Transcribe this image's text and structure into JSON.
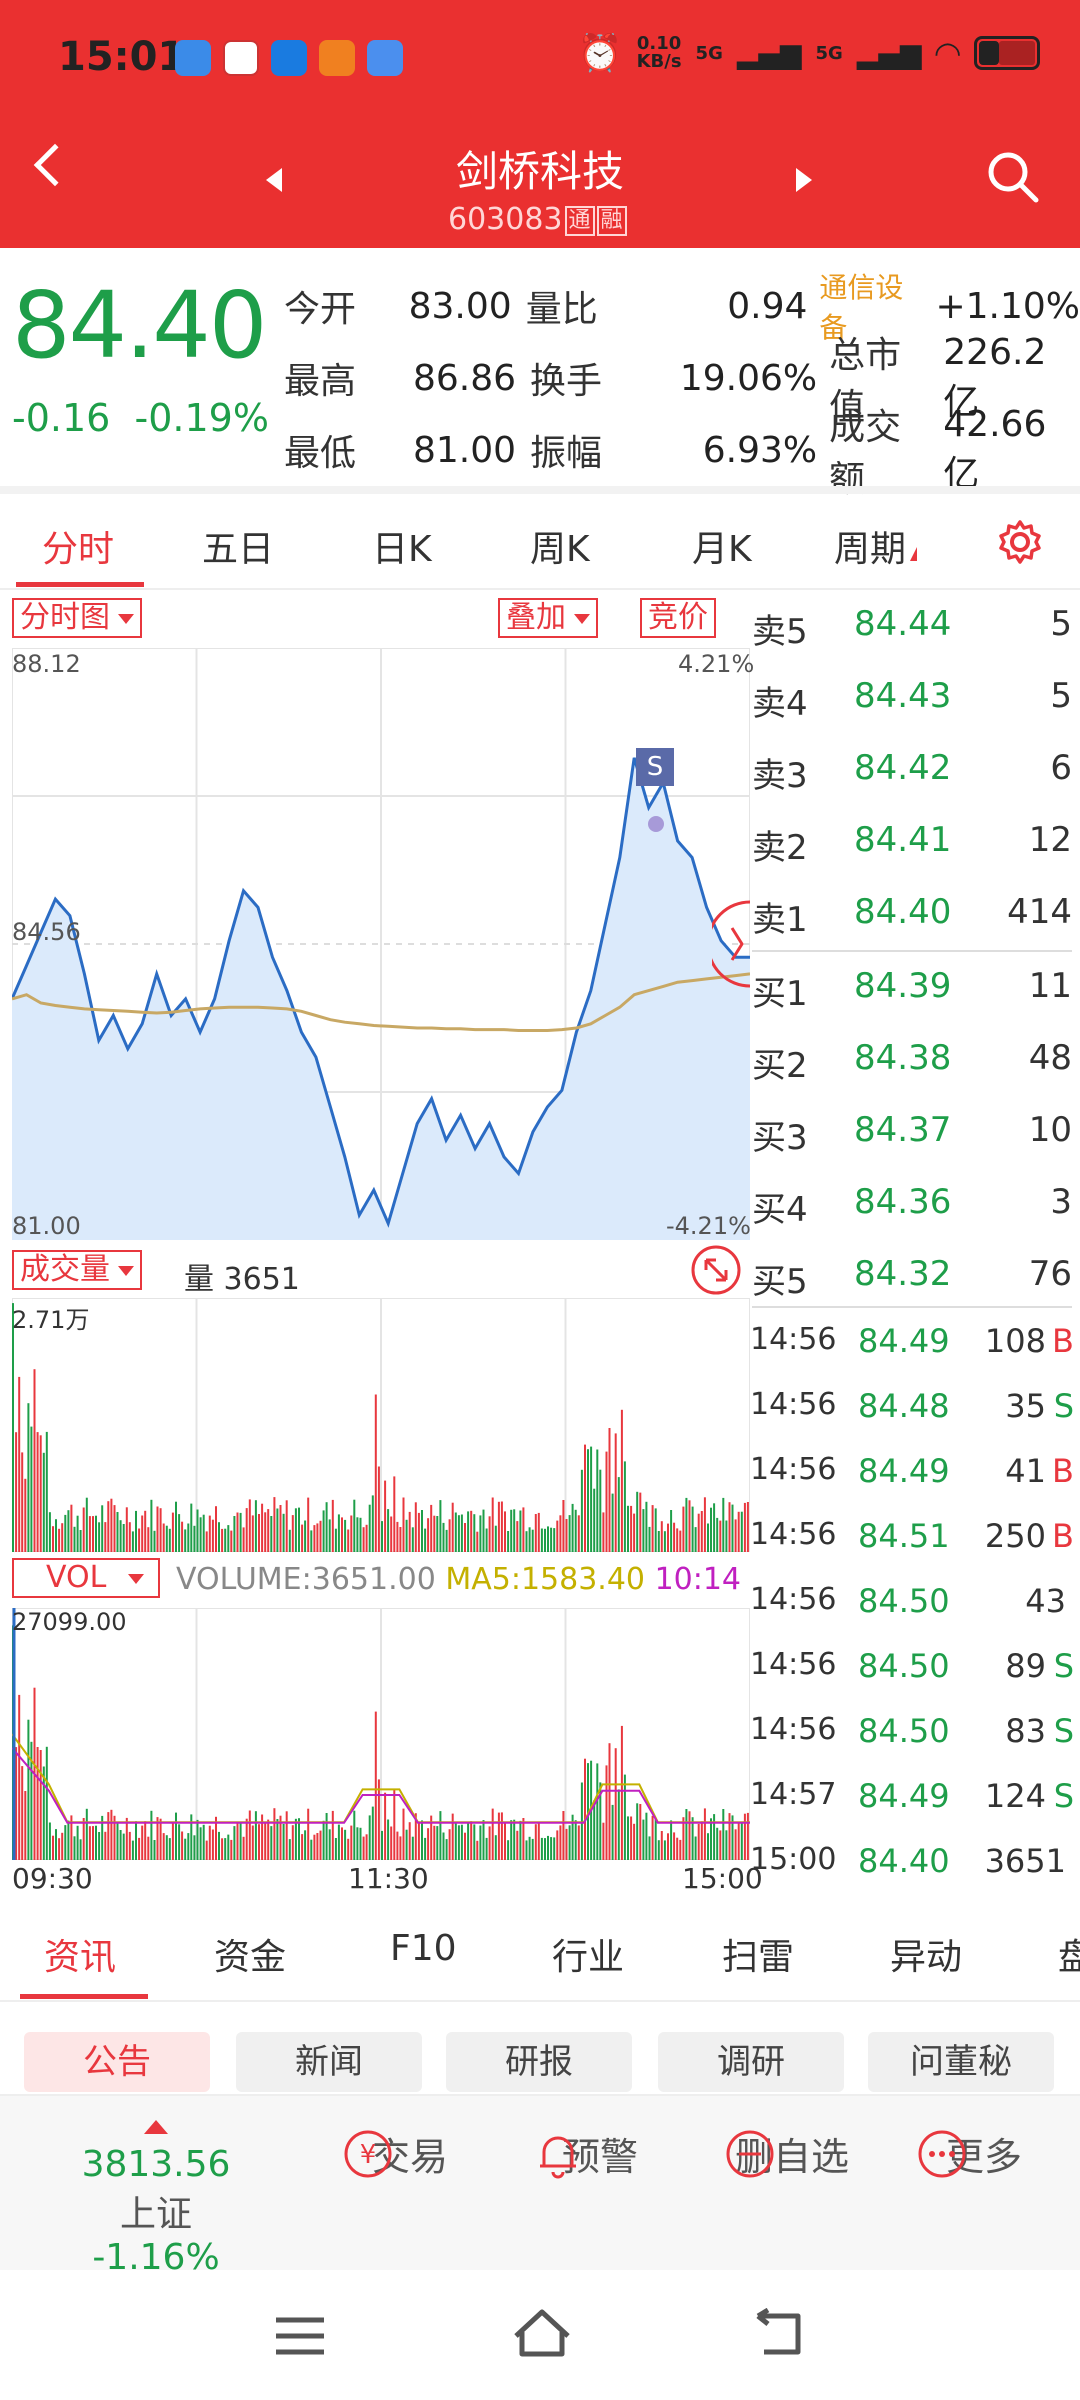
{
  "status_bar": {
    "time": "15:01",
    "net_speed_top": "0.10",
    "net_speed_unit": "KB/s",
    "sig1": "5G",
    "sig2": "5G"
  },
  "header": {
    "name": "剑桥科技",
    "code": "603083",
    "tag1": "通",
    "tag2": "融"
  },
  "quote": {
    "price": "84.40",
    "change": "-0.16",
    "change_pct": "-0.19%",
    "rows": [
      {
        "l1": "今开",
        "v1": "83.00",
        "l2": "量比",
        "v2": "0.94",
        "l3": "通信设备",
        "v3": "+1.10%"
      },
      {
        "l1": "最高",
        "v1": "86.86",
        "l2": "换手",
        "v2": "19.06%",
        "l3": "总市值",
        "v3": "226.2亿"
      },
      {
        "l1": "最低",
        "v1": "81.00",
        "l2": "振幅",
        "v2": "6.93%",
        "l3": "成交额",
        "v3": "42.66亿"
      }
    ]
  },
  "tabs": [
    "分时",
    "五日",
    "日K",
    "周K",
    "月K",
    "周期"
  ],
  "chart": {
    "type_btn": "分时图",
    "overlay_btn": "叠加",
    "auction_btn": "竞价",
    "y_max": "88.12",
    "y_mid": "84.56",
    "y_min": "81.00",
    "pct_max": "4.21%",
    "pct_min": "-4.21%",
    "marker": "S",
    "vol_btn": "成交量",
    "vol_label": "量 3651",
    "vol_max": "2.71万",
    "ind_btn": "VOL",
    "ind_volume_label": "VOLUME:",
    "ind_volume_value": "3651.00",
    "ind_ma5_label": "MA5:",
    "ind_ma5_value": "1583.40",
    "ind_ma10": "10:14",
    "ind_max": "27099.00",
    "x_start": "09:30",
    "x_mid": "11:30",
    "x_end": "15:00"
  },
  "order_book": [
    {
      "label": "卖5",
      "price": "84.44",
      "qty": "5"
    },
    {
      "label": "卖4",
      "price": "84.43",
      "qty": "5"
    },
    {
      "label": "卖3",
      "price": "84.42",
      "qty": "6"
    },
    {
      "label": "卖2",
      "price": "84.41",
      "qty": "12"
    },
    {
      "label": "卖1",
      "price": "84.40",
      "qty": "414"
    },
    {
      "label": "买1",
      "price": "84.39",
      "qty": "11"
    },
    {
      "label": "买2",
      "price": "84.38",
      "qty": "48"
    },
    {
      "label": "买3",
      "price": "84.37",
      "qty": "10"
    },
    {
      "label": "买4",
      "price": "84.36",
      "qty": "3"
    },
    {
      "label": "买5",
      "price": "84.32",
      "qty": "76"
    }
  ],
  "ticks": [
    {
      "time": "14:56",
      "price": "84.49",
      "qty": "108",
      "side": "B"
    },
    {
      "time": "14:56",
      "price": "84.48",
      "qty": "35",
      "side": "S"
    },
    {
      "time": "14:56",
      "price": "84.49",
      "qty": "41",
      "side": "B"
    },
    {
      "time": "14:56",
      "price": "84.51",
      "qty": "250",
      "side": "B"
    },
    {
      "time": "14:56",
      "price": "84.50",
      "qty": "43",
      "side": ""
    },
    {
      "time": "14:56",
      "price": "84.50",
      "qty": "89",
      "side": "S"
    },
    {
      "time": "14:56",
      "price": "84.50",
      "qty": "83",
      "side": "S"
    },
    {
      "time": "14:57",
      "price": "84.49",
      "qty": "124",
      "side": "S"
    },
    {
      "time": "15:00",
      "price": "84.40",
      "qty": "3651",
      "side": ""
    }
  ],
  "news_tabs": [
    "资讯",
    "资金",
    "F10",
    "行业",
    "扫雷",
    "异动",
    "盘"
  ],
  "chips": [
    "公告",
    "新闻",
    "研报",
    "调研",
    "问董秘"
  ],
  "toolbar": {
    "index_value": "3813.56",
    "index_name": "上证",
    "index_change": "-1.16%",
    "items": [
      "交易",
      "预警",
      "删自选",
      "更多"
    ]
  },
  "colors": {
    "brand": "#ea3030",
    "down": "#1e9e49",
    "up": "#e8373e",
    "price_line": "#2b6cc4",
    "avg_line": "#c8a864"
  },
  "chart_data": {
    "type": "line",
    "x_labels": [
      "09:30",
      "11:30",
      "15:00"
    ],
    "ylim": [
      81.0,
      88.12
    ],
    "prev_close": 84.56,
    "series": [
      {
        "values": [
          83.9,
          84.3,
          84.7,
          85.1,
          84.9,
          84.2,
          83.4,
          83.7,
          83.3,
          83.6,
          84.2,
          83.7,
          83.9,
          83.5,
          83.9,
          84.6,
          85.2,
          85.0,
          84.4,
          84.0,
          83.5,
          83.2,
          82.6,
          82.0,
          81.3,
          81.6,
          81.2,
          81.8,
          82.4,
          82.7,
          82.2,
          82.5,
          82.1,
          82.4,
          82.0,
          81.8,
          82.3,
          82.6,
          82.8,
          83.5,
          84.0,
          84.8,
          85.6,
          86.8,
          86.2,
          86.5,
          85.8,
          85.6,
          85.0,
          84.6,
          84.4,
          84.4
        ]
      },
      {
        "values": [
          83.9,
          83.95,
          83.85,
          83.82,
          83.8,
          83.78,
          83.77,
          83.76,
          83.75,
          83.74,
          83.73,
          83.74,
          83.76,
          83.78,
          83.79,
          83.8,
          83.8,
          83.8,
          83.79,
          83.78,
          83.75,
          83.7,
          83.65,
          83.62,
          83.6,
          83.58,
          83.57,
          83.56,
          83.55,
          83.55,
          83.54,
          83.54,
          83.53,
          83.53,
          83.53,
          83.52,
          83.52,
          83.52,
          83.53,
          83.55,
          83.6,
          83.7,
          83.8,
          83.95,
          84.0,
          84.05,
          84.1,
          84.12,
          84.14,
          84.16,
          84.18,
          84.2
        ]
      }
    ]
  }
}
